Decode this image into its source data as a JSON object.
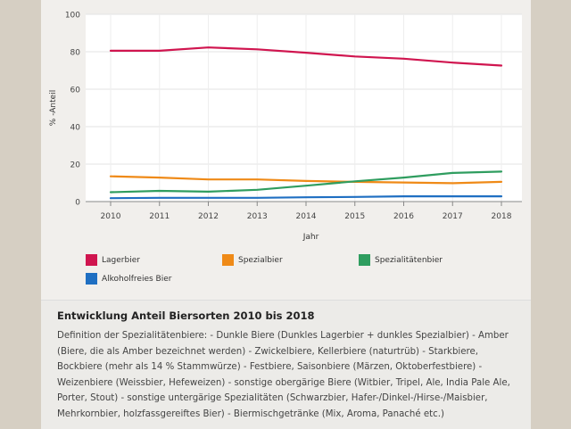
{
  "chart_data": {
    "type": "line",
    "title": "Entwicklung Anteil Biersorten 2010 bis 2018",
    "xlabel": "Jahr",
    "ylabel": "% -Anteil",
    "ylim": [
      0,
      100
    ],
    "yticks": [
      0,
      20,
      40,
      60,
      80,
      100
    ],
    "x": [
      2010,
      2011,
      2012,
      2013,
      2014,
      2015,
      2016,
      2017,
      2018
    ],
    "series": [
      {
        "name": "Lagerbier",
        "color": "#d0154f",
        "values": [
          80.5,
          80.5,
          82.3,
          81.3,
          79.5,
          77.5,
          76.3,
          74.2,
          72.6
        ]
      },
      {
        "name": "Spezialbier",
        "color": "#ef8a17",
        "values": [
          13.5,
          12.8,
          11.8,
          11.8,
          11.0,
          10.5,
          10.2,
          9.8,
          10.5
        ]
      },
      {
        "name": "Spezialitätenbier",
        "color": "#2f9d5f",
        "values": [
          5.0,
          5.7,
          5.3,
          6.3,
          8.5,
          10.8,
          12.8,
          15.3,
          16.0
        ]
      },
      {
        "name": "Alkoholfreies Bier",
        "color": "#1f6fc2",
        "values": [
          1.8,
          2.0,
          2.0,
          2.0,
          2.3,
          2.5,
          2.8,
          2.8,
          2.8
        ]
      }
    ],
    "grid": true,
    "legend_position": "bottom"
  },
  "caption": {
    "title": "Entwicklung Anteil Biersorten 2010 bis 2018",
    "text": "Definition der Spezialitätenbiere: - Dunkle Biere (Dunkles Lagerbier + dunkles Spezialbier) - Amber (Biere, die als Amber bezeichnet werden) - Zwickelbiere, Kellerbiere (naturtrüb) - Starkbiere, Bockbiere (mehr als 14 % Stammwürze) - Festbiere, Saisonbiere (Märzen, Oktoberfestbiere) - Weizenbiere (Weissbier, Hefeweizen) - sonstige obergärige Biere (Witbier, Tripel, Ale, India Pale Ale, Porter, Stout) - sonstige untergärige Spezialitäten (Schwarzbier, Hafer-/Dinkel-/Hirse-/Maisbier, Mehrkornbier, holzfassgereiftes Bier) - Biermischgetränke (Mix, Aroma, Panaché etc.)"
  }
}
